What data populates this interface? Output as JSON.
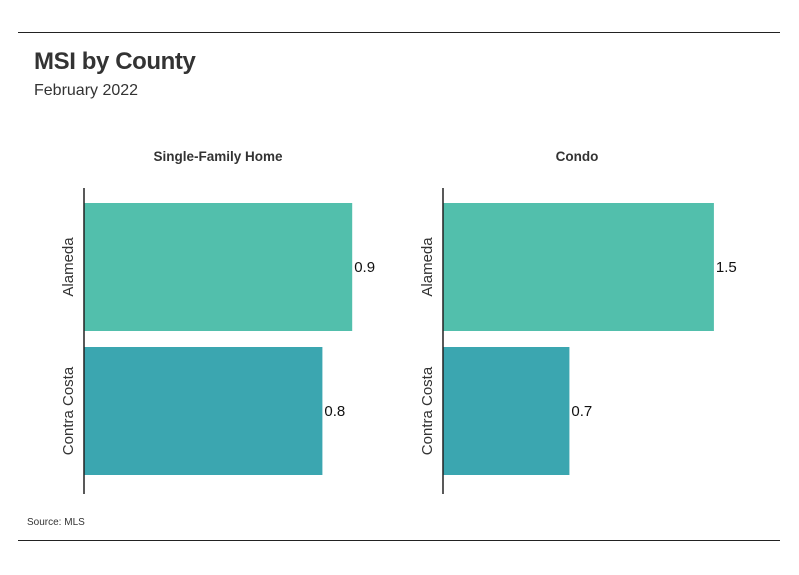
{
  "header": {
    "title": "MSI by County",
    "subtitle": "February 2022"
  },
  "footer": {
    "source": "Source:  MLS"
  },
  "colors": {
    "alameda": "#52bfac",
    "contra_costa": "#3ba6b0",
    "axis": "#222222"
  },
  "chart_data": [
    {
      "type": "bar",
      "orientation": "horizontal",
      "title": "Single-Family Home",
      "categories": [
        "Alameda",
        "Contra Costa"
      ],
      "values": [
        0.9,
        0.8
      ],
      "value_labels": [
        "0.9",
        "0.8"
      ],
      "xlim": [
        0,
        1.0
      ]
    },
    {
      "type": "bar",
      "orientation": "horizontal",
      "title": "Condo",
      "categories": [
        "Alameda",
        "Contra Costa"
      ],
      "values": [
        1.5,
        0.7
      ],
      "value_labels": [
        "1.5",
        "0.7"
      ],
      "xlim": [
        0,
        1.65
      ]
    }
  ]
}
